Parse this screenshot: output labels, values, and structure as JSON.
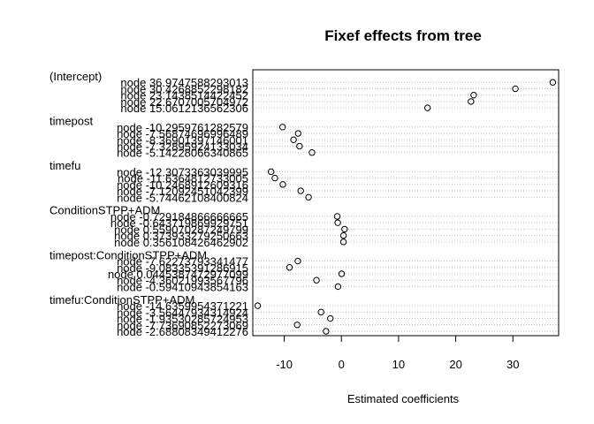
{
  "chart_data": {
    "type": "dot",
    "title": "Fixef effects from tree",
    "xlabel": "Estimated coefficients",
    "ylabel": "",
    "xlim": [
      -15.5,
      38.0
    ],
    "xticks": [
      -10,
      0,
      10,
      20,
      30
    ],
    "grid": "horizontal dotted",
    "groups": [
      {
        "name": "(Intercept)",
        "rows": [
          {
            "label": "node 36.9747588293013",
            "value": 36.9747588293013
          },
          {
            "label": "node 30.4268852298182",
            "value": 30.4268852298182
          },
          {
            "label": "node 23.1438514422452",
            "value": 23.1438514422452
          },
          {
            "label": "node 22.6707005704972",
            "value": 22.6707005704972
          },
          {
            "label": "node 15.0612136562306",
            "value": 15.0612136562306
          }
        ]
      },
      {
        "name": "timepost",
        "rows": [
          {
            "label": "node -10.2959761282579",
            "value": -10.2959761282579
          },
          {
            "label": "node -7.56874696996489",
            "value": -7.56874696996489
          },
          {
            "label": "node -8.36901397146001",
            "value": -8.36901397146001
          },
          {
            "label": "node -7.32895924133034",
            "value": -7.32895924133034
          },
          {
            "label": "node -5.14228066340865",
            "value": -5.14228066340865
          }
        ]
      },
      {
        "name": "timefu",
        "rows": [
          {
            "label": "node -12.3073363039995",
            "value": -12.3073363039995
          },
          {
            "label": "node -11.6364812733005",
            "value": -11.6364812733005
          },
          {
            "label": "node -10.2468912609316",
            "value": -10.2468912609316
          },
          {
            "label": "node -7.12092451042399",
            "value": -7.12092451042399
          },
          {
            "label": "node -5.74462108400824",
            "value": -5.74462108400824
          }
        ]
      },
      {
        "name": "ConditionSTPP+ADM",
        "rows": [
          {
            "label": "node -0.729184866666665",
            "value": -0.729184866666665
          },
          {
            "label": "node -0.643719869929751",
            "value": -0.643719869929751
          },
          {
            "label": "node 0.559070287249799",
            "value": 0.559070287249799
          },
          {
            "label": "node 0.373933279250663",
            "value": 0.373933279250663
          },
          {
            "label": "node 0.356108426462902",
            "value": 0.356108426462902
          }
        ]
      },
      {
        "name": "timepost:ConditionSTPP+ADM",
        "rows": [
          {
            "label": "node -7.62273793341477",
            "value": -7.62273793341477
          },
          {
            "label": "node -9.08335391286915",
            "value": -9.08335391286915
          },
          {
            "label": "node 0.0445387472977099",
            "value": 0.0445387472977099
          },
          {
            "label": "node -4.36021993567796",
            "value": -4.36021993567796
          },
          {
            "label": "node -0.59410943854163",
            "value": -0.59410943854163
          }
        ]
      },
      {
        "name": "timefu:ConditionSTPP+ADM",
        "rows": [
          {
            "label": "node -14.6359954371221",
            "value": -14.6359954371221
          },
          {
            "label": "node -3.56447934314924",
            "value": -3.56447934314924
          },
          {
            "label": "node -1.93530285724953",
            "value": -1.93530285724953
          },
          {
            "label": "node -7.73690852273069",
            "value": -7.73690852273069
          },
          {
            "label": "node -2.68808349412276",
            "value": -2.68808349412276
          }
        ]
      }
    ]
  }
}
